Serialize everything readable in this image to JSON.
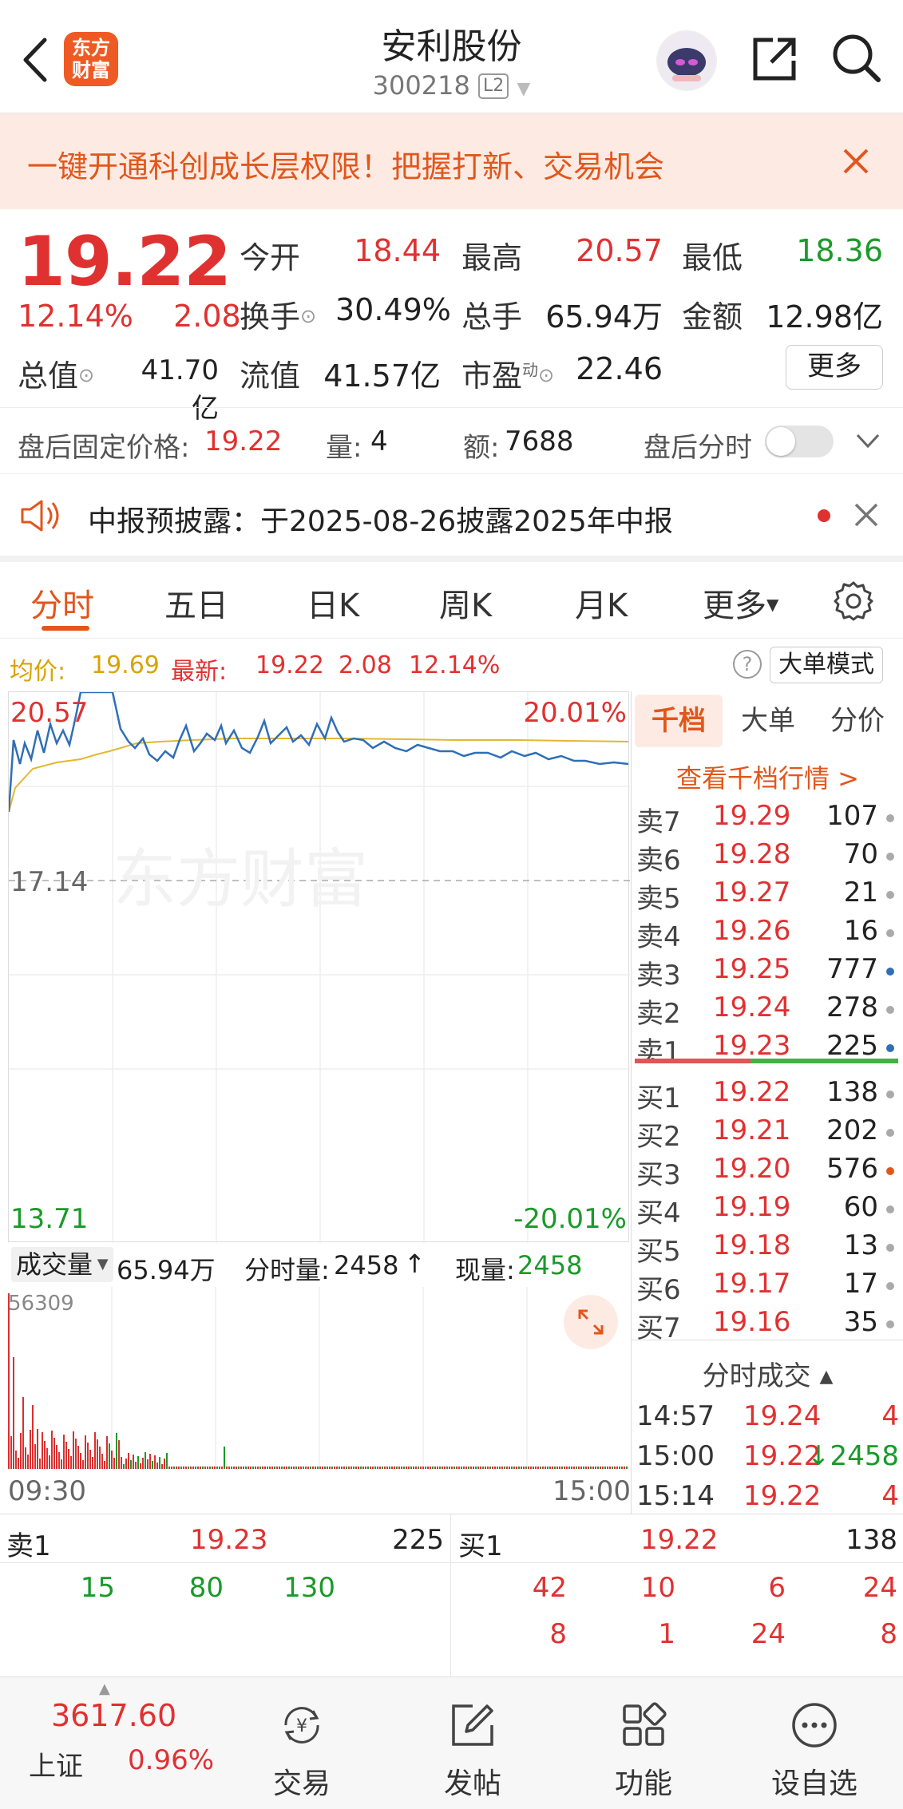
{
  "header": {
    "title": "安利股份",
    "code": "300218",
    "level_badge": "L2",
    "logo_text_line1": "东方",
    "logo_text_line2": "财富"
  },
  "banner": {
    "text": "一键开通科创成长层权限！把握打新、交易机会"
  },
  "quote": {
    "price": "19.22",
    "change_pct": "12.14%",
    "change": "2.08",
    "open_label": "今开",
    "open": "18.44",
    "high_label": "最高",
    "high": "20.57",
    "low_label": "最低",
    "low": "18.36",
    "turnover_label": "换手",
    "turnover": "30.49%",
    "volume_label": "总手",
    "volume": "65.94万",
    "amount_label": "金额",
    "amount": "12.98亿",
    "mktcap_label": "总值",
    "mktcap": "41.70亿",
    "float_label": "流值",
    "float_cap": "41.57亿",
    "pe_label": "市盈",
    "pe_sup": "动",
    "pe": "22.46",
    "more_label": "更多"
  },
  "after_hours": {
    "price_label": "盘后固定价格:",
    "price": "19.22",
    "vol_label": "量:",
    "vol": "4",
    "amt_label": "额:",
    "amt": "7688",
    "toggle_label": "盘后分时"
  },
  "notice": {
    "text": "中报预披露：于2025-08-26披露2025年中报"
  },
  "tabs": [
    "分时",
    "五日",
    "日K",
    "周K",
    "月K",
    "更多"
  ],
  "avg_row": {
    "avg_label": "均价:",
    "avg": "19.69",
    "last_label": "最新:",
    "last": "19.22",
    "chg": "2.08",
    "pct": "12.14%",
    "mode_label": "大单模式"
  },
  "chart": {
    "y_max": "20.57",
    "y_mid": "17.14",
    "y_min": "13.71",
    "pct_max": "20.01%",
    "pct_min": "-20.01%",
    "watermark": "东方财富",
    "time_start": "09:30",
    "time_end": "15:00"
  },
  "volume_bar": {
    "label": "成交量",
    "total": "65.94万",
    "min_vol_label": "分时量:",
    "min_vol": "2458",
    "cur_label": "现量:",
    "cur": "2458",
    "peak": "56309"
  },
  "order_book": {
    "tabs": [
      "千档",
      "大单",
      "分价"
    ],
    "link": "查看千档行情 >",
    "asks": [
      {
        "name": "卖7",
        "price": "19.29",
        "vol": "107"
      },
      {
        "name": "卖6",
        "price": "19.28",
        "vol": "70"
      },
      {
        "name": "卖5",
        "price": "19.27",
        "vol": "21"
      },
      {
        "name": "卖4",
        "price": "19.26",
        "vol": "16"
      },
      {
        "name": "卖3",
        "price": "19.25",
        "vol": "777"
      },
      {
        "name": "卖2",
        "price": "19.24",
        "vol": "278"
      },
      {
        "name": "卖1",
        "price": "19.23",
        "vol": "225"
      }
    ],
    "bids": [
      {
        "name": "买1",
        "price": "19.22",
        "vol": "138"
      },
      {
        "name": "买2",
        "price": "19.21",
        "vol": "202"
      },
      {
        "name": "买3",
        "price": "19.20",
        "vol": "576"
      },
      {
        "name": "买4",
        "price": "19.19",
        "vol": "60"
      },
      {
        "name": "买5",
        "price": "19.18",
        "vol": "13"
      },
      {
        "name": "买6",
        "price": "19.17",
        "vol": "17"
      },
      {
        "name": "买7",
        "price": "19.16",
        "vol": "35"
      }
    ],
    "tick_title": "分时成交",
    "ticks": [
      {
        "time": "14:57",
        "price": "19.24",
        "vol": "4"
      },
      {
        "time": "15:00",
        "price": "19.22",
        "vol": "↓2458"
      },
      {
        "time": "15:14",
        "price": "19.22",
        "vol": "4"
      }
    ]
  },
  "level_table": {
    "sell1_label": "卖1",
    "sell1_price": "19.23",
    "sell1_vol": "225",
    "buy1_label": "买1",
    "buy1_price": "19.22",
    "buy1_vol": "138",
    "sell_queue": [
      "15",
      "80",
      "130"
    ],
    "buy_queue_row1": [
      "42",
      "10",
      "6",
      "24"
    ],
    "buy_queue_row2": [
      "8",
      "1",
      "24",
      "8"
    ]
  },
  "bottom_nav": {
    "index_value": "3617.60",
    "index_name": "上证",
    "index_pct": "0.96%",
    "items": [
      "交易",
      "发帖",
      "功能",
      "设自选"
    ]
  }
}
